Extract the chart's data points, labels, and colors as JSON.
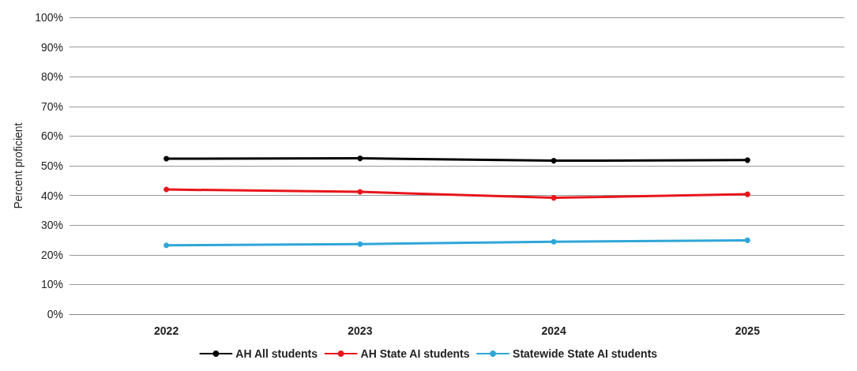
{
  "chart_data": {
    "type": "line",
    "ylabel": "Percent proficient",
    "categories": [
      "2022",
      "2023",
      "2024",
      "2025"
    ],
    "series": [
      {
        "name": "AH All students",
        "color": "#000000",
        "values": [
          52.4,
          52.5,
          51.7,
          51.9
        ]
      },
      {
        "name": "AH State AI students",
        "color": "#e8151b",
        "values": [
          42,
          41.2,
          39.2,
          40.4
        ]
      },
      {
        "name": "Statewide State AI students",
        "color": "#2fa6d9",
        "values": [
          23.2,
          23.6,
          24.4,
          24.9
        ]
      }
    ],
    "ylim": [
      0,
      100
    ],
    "yticks": [
      {
        "value": 0,
        "label": "0%"
      },
      {
        "value": 10,
        "label": "10%"
      },
      {
        "value": 20,
        "label": "20%"
      },
      {
        "value": 30,
        "label": "30%"
      },
      {
        "value": 40,
        "label": "40%"
      },
      {
        "value": 50,
        "label": "50%"
      },
      {
        "value": 60,
        "label": "60%"
      },
      {
        "value": 70,
        "label": "70%"
      },
      {
        "value": 80,
        "label": "80%"
      },
      {
        "value": 90,
        "label": "90%"
      },
      {
        "value": 100,
        "label": "100%"
      }
    ],
    "grid": "y",
    "legend": "bottom",
    "marker": "circle",
    "line_style": "solid"
  }
}
